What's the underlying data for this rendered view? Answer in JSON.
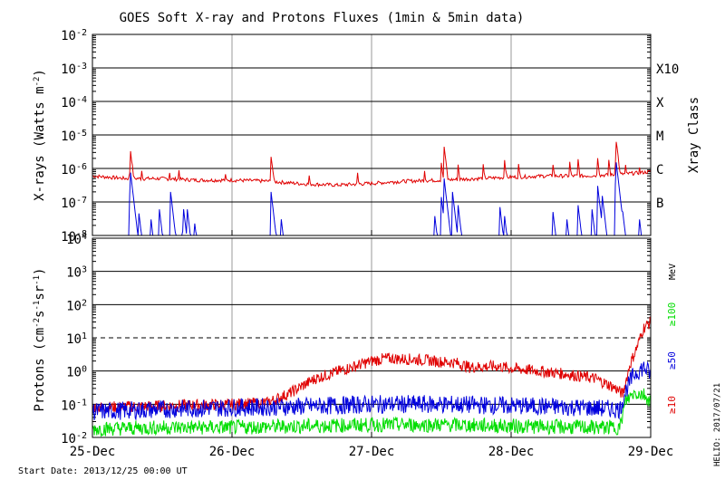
{
  "title": "GOES Soft X-ray and Protons Fluxes   (1min & 5min data)",
  "start_date": "Start Date: 2013/12/25 00:00 UT",
  "credit": "HELIO: 2017/07/21",
  "colors": {
    "red": "#e00000",
    "blue": "#0000dd",
    "green": "#00dd00",
    "grid": "#000000",
    "vgrid": "#9a9a9a"
  },
  "chart_data": [
    {
      "type": "line",
      "panel": "xray",
      "title": "GOES Soft X-ray and Protons Fluxes   (1min & 5min data)",
      "ylabel_html": "X-rays (Watts m<tspan baseline-shift='super' font-size='9'>-2</tspan>)",
      "ylabel_text": "X-rays (Watts m-2)",
      "y_scale": "log",
      "ylim": [
        1e-08,
        0.01
      ],
      "y_ticks": [
        {
          "value": 1e-08,
          "mantissa": "10",
          "exp": "-8"
        },
        {
          "value": 1e-07,
          "mantissa": "10",
          "exp": "-7"
        },
        {
          "value": 1e-06,
          "mantissa": "10",
          "exp": "-6"
        },
        {
          "value": 1e-05,
          "mantissa": "10",
          "exp": "-5"
        },
        {
          "value": 0.0001,
          "mantissa": "10",
          "exp": "-4"
        },
        {
          "value": 0.001,
          "mantissa": "10",
          "exp": "-3"
        },
        {
          "value": 0.01,
          "mantissa": "10",
          "exp": "-2"
        }
      ],
      "right_axis_label": "Xray Class",
      "class_labels": [
        {
          "label": "B",
          "value": 1e-07
        },
        {
          "label": "C",
          "value": 1e-06
        },
        {
          "label": "M",
          "value": 1e-05
        },
        {
          "label": "X",
          "value": 0.0001
        },
        {
          "label": "X10",
          "value": 0.001
        }
      ],
      "x_day_range": [
        0,
        4
      ],
      "series": [
        {
          "color_key": "red",
          "baseline": [
            [
              0,
              6e-07
            ],
            [
              0.25,
              5e-07
            ],
            [
              0.5,
              5e-07
            ],
            [
              0.75,
              4.5e-07
            ],
            [
              1,
              4.5e-07
            ],
            [
              1.25,
              4.2e-07
            ],
            [
              1.5,
              3.5e-07
            ],
            [
              1.75,
              3.2e-07
            ],
            [
              2,
              3.6e-07
            ],
            [
              2.25,
              4.2e-07
            ],
            [
              2.5,
              4.5e-07
            ],
            [
              2.75,
              5e-07
            ],
            [
              3,
              5.5e-07
            ],
            [
              3.25,
              6e-07
            ],
            [
              3.5,
              6e-07
            ],
            [
              3.75,
              6.5e-07
            ],
            [
              4,
              8e-07
            ]
          ],
          "flares": [
            [
              0.27,
              4.5e-06
            ],
            [
              0.35,
              1.2e-06
            ],
            [
              0.55,
              1e-06
            ],
            [
              0.62,
              9e-07
            ],
            [
              0.95,
              8e-07
            ],
            [
              1.28,
              2.5e-06
            ],
            [
              1.55,
              8e-07
            ],
            [
              1.9,
              7e-07
            ],
            [
              2.15,
              6e-07
            ],
            [
              2.38,
              9e-07
            ],
            [
              2.5,
              1.5e-06
            ],
            [
              2.52,
              4.5e-06
            ],
            [
              2.62,
              1.3e-06
            ],
            [
              2.8,
              1.2e-06
            ],
            [
              2.95,
              2.5e-06
            ],
            [
              3.05,
              1.7e-06
            ],
            [
              3.3,
              1.4e-06
            ],
            [
              3.42,
              1.5e-06
            ],
            [
              3.48,
              1.8e-06
            ],
            [
              3.62,
              2.2e-06
            ],
            [
              3.7,
              1.8e-06
            ],
            [
              3.75,
              9e-06
            ],
            [
              3.82,
              1.2e-06
            ],
            [
              3.92,
              1e-06
            ]
          ]
        },
        {
          "color_key": "blue",
          "baseline": [
            [
              0,
              1e-08
            ],
            [
              4,
              1e-08
            ]
          ],
          "flares": [
            [
              0.27,
              1e-06
            ],
            [
              0.33,
              6e-08
            ],
            [
              0.42,
              3e-08
            ],
            [
              0.48,
              6e-08
            ],
            [
              0.56,
              2e-07
            ],
            [
              0.65,
              8e-08
            ],
            [
              0.68,
              6e-08
            ],
            [
              0.73,
              3e-08
            ],
            [
              1.28,
              2e-07
            ],
            [
              1.35,
              4e-08
            ],
            [
              2.45,
              5e-08
            ],
            [
              2.5,
              1.4e-07
            ],
            [
              2.52,
              5e-07
            ],
            [
              2.58,
              2e-07
            ],
            [
              2.62,
              8e-08
            ],
            [
              2.92,
              7e-08
            ],
            [
              2.95,
              5e-08
            ],
            [
              3.3,
              5e-08
            ],
            [
              3.4,
              3e-08
            ],
            [
              3.48,
              8e-08
            ],
            [
              3.58,
              6e-08
            ],
            [
              3.62,
              3e-07
            ],
            [
              3.65,
              2e-07
            ],
            [
              3.75,
              2e-06
            ],
            [
              3.8,
              5e-08
            ],
            [
              3.92,
              3e-08
            ]
          ]
        }
      ]
    },
    {
      "type": "line",
      "panel": "protons",
      "ylabel_text": "Protons (cm-2 s-1 sr-1)",
      "y_scale": "log",
      "ylim": [
        0.01,
        10000
      ],
      "y_ticks": [
        {
          "value": 0.01,
          "mantissa": "10",
          "exp": "-2"
        },
        {
          "value": 0.1,
          "mantissa": "10",
          "exp": "-1"
        },
        {
          "value": 1,
          "mantissa": "10",
          "exp": "0"
        },
        {
          "value": 10,
          "mantissa": "10",
          "exp": "1"
        },
        {
          "value": 100,
          "mantissa": "10",
          "exp": "2"
        },
        {
          "value": 1000,
          "mantissa": "10",
          "exp": "3"
        },
        {
          "value": 10000,
          "mantissa": "10",
          "exp": "4"
        }
      ],
      "dashed_level": 10,
      "unit_label": "MeV",
      "legend": [
        {
          "label": "≥100",
          "color_key": "green"
        },
        {
          "label": "≥50",
          "color_key": "blue"
        },
        {
          "label": "≥10",
          "color_key": "red"
        }
      ],
      "x_day_range": [
        0,
        4
      ],
      "series": [
        {
          "name": "≥10",
          "color_key": "red",
          "points": [
            [
              0,
              0.08
            ],
            [
              0.5,
              0.09
            ],
            [
              1,
              0.1
            ],
            [
              1.25,
              0.11
            ],
            [
              1.4,
              0.2
            ],
            [
              1.6,
              0.6
            ],
            [
              1.8,
              1.1
            ],
            [
              2,
              2.0
            ],
            [
              2.1,
              2.4
            ],
            [
              2.25,
              2.3
            ],
            [
              2.4,
              2.1
            ],
            [
              2.5,
              1.9
            ],
            [
              2.6,
              1.8
            ],
            [
              2.7,
              1.3
            ],
            [
              2.9,
              1.4
            ],
            [
              3,
              1.2
            ],
            [
              3.2,
              1.0
            ],
            [
              3.4,
              0.8
            ],
            [
              3.6,
              0.6
            ],
            [
              3.75,
              0.3
            ],
            [
              3.8,
              0.2
            ],
            [
              3.85,
              1.5
            ],
            [
              3.9,
              5
            ],
            [
              3.95,
              20
            ],
            [
              4,
              30
            ]
          ]
        },
        {
          "name": "≥50",
          "color_key": "blue",
          "points": [
            [
              0,
              0.06
            ],
            [
              0.5,
              0.07
            ],
            [
              1,
              0.08
            ],
            [
              1.5,
              0.085
            ],
            [
              2,
              0.1
            ],
            [
              2.5,
              0.1
            ],
            [
              3,
              0.09
            ],
            [
              3.5,
              0.08
            ],
            [
              3.78,
              0.07
            ],
            [
              3.82,
              0.25
            ],
            [
              3.88,
              0.8
            ],
            [
              3.95,
              1.3
            ],
            [
              4,
              0.8
            ]
          ]
        },
        {
          "name": "≥100",
          "color_key": "green",
          "points": [
            [
              0,
              0.018
            ],
            [
              0.5,
              0.02
            ],
            [
              1,
              0.02
            ],
            [
              1.5,
              0.022
            ],
            [
              2,
              0.024
            ],
            [
              2.5,
              0.024
            ],
            [
              3,
              0.022
            ],
            [
              3.5,
              0.02
            ],
            [
              3.78,
              0.02
            ],
            [
              3.82,
              0.12
            ],
            [
              3.88,
              0.22
            ],
            [
              3.95,
              0.2
            ],
            [
              4,
              0.12
            ]
          ]
        }
      ]
    }
  ],
  "x_ticks": [
    "25-Dec",
    "26-Dec",
    "27-Dec",
    "28-Dec",
    "29-Dec"
  ]
}
